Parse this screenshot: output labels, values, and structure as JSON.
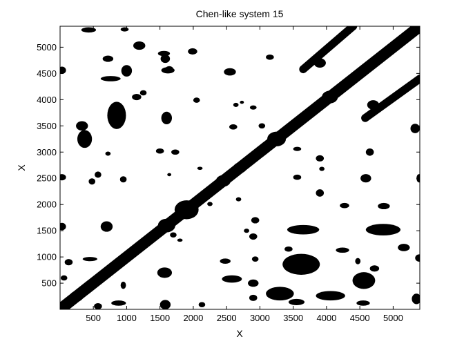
{
  "chart_data": {
    "type": "recurrence-plot",
    "title": "Chen-like system 15",
    "xlabel": "X",
    "ylabel": "X",
    "xlim": [
      1,
      5400
    ],
    "ylim": [
      1,
      5400
    ],
    "xticks": [
      500,
      1000,
      1500,
      2000,
      2500,
      3000,
      3500,
      4000,
      4500,
      5000
    ],
    "yticks": [
      500,
      1000,
      1500,
      2000,
      2500,
      3000,
      3500,
      4000,
      4500,
      5000
    ],
    "grid": false,
    "colors": {
      "recurrence": "#000000",
      "background": "#ffffff"
    },
    "diagonals": [
      {
        "name": "main",
        "from": [
          1,
          1
        ],
        "to": [
          5400,
          5400
        ],
        "width": 170
      },
      {
        "name": "upper",
        "from": [
          3650,
          4580
        ],
        "to": [
          4400,
          5400
        ],
        "width": 120
      },
      {
        "name": "lower",
        "from": [
          4580,
          3650
        ],
        "to": [
          5400,
          4400
        ],
        "width": 120
      }
    ],
    "nodes": [
      [
        250,
        250,
        100
      ],
      [
        700,
        700,
        80
      ],
      [
        1600,
        1600,
        130
      ],
      [
        1900,
        1900,
        180
      ],
      [
        2450,
        2450,
        110
      ],
      [
        2700,
        2700,
        100
      ],
      [
        3250,
        3250,
        140
      ],
      [
        4050,
        4050,
        120
      ],
      [
        4650,
        4650,
        90
      ],
      [
        3900,
        4700,
        90
      ],
      [
        4700,
        3900,
        90
      ]
    ],
    "blobs": [
      [
        430,
        5330,
        110,
        50
      ],
      [
        970,
        5340,
        60,
        40
      ],
      [
        30,
        4560,
        60,
        70
      ],
      [
        1190,
        5030,
        90,
        80
      ],
      [
        1560,
        4880,
        90,
        50
      ],
      [
        1990,
        4920,
        70,
        60
      ],
      [
        720,
        4780,
        80,
        60
      ],
      [
        760,
        4400,
        150,
        50
      ],
      [
        1000,
        4550,
        80,
        110
      ],
      [
        1580,
        4780,
        70,
        80
      ],
      [
        1620,
        4560,
        100,
        60
      ],
      [
        2550,
        4530,
        90,
        70
      ],
      [
        3150,
        4810,
        60,
        50
      ],
      [
        1150,
        4050,
        70,
        60
      ],
      [
        2050,
        3990,
        50,
        50
      ],
      [
        850,
        3700,
        140,
        260
      ],
      [
        1600,
        3650,
        80,
        120
      ],
      [
        330,
        3500,
        90,
        90
      ],
      [
        370,
        3250,
        110,
        170
      ],
      [
        2640,
        3900,
        40,
        40
      ],
      [
        2900,
        3850,
        50,
        40
      ],
      [
        2600,
        3480,
        60,
        50
      ],
      [
        3030,
        3500,
        50,
        50
      ],
      [
        1500,
        3020,
        60,
        50
      ],
      [
        1730,
        3000,
        60,
        50
      ],
      [
        720,
        2970,
        40,
        40
      ],
      [
        3560,
        3060,
        60,
        40
      ],
      [
        3900,
        2880,
        60,
        60
      ],
      [
        4650,
        3000,
        60,
        70
      ],
      [
        5330,
        3450,
        70,
        90
      ],
      [
        570,
        2570,
        50,
        60
      ],
      [
        480,
        2440,
        50,
        60
      ],
      [
        950,
        2480,
        50,
        60
      ],
      [
        2100,
        2690,
        40,
        30
      ],
      [
        1640,
        2570,
        30,
        30
      ],
      [
        3560,
        2520,
        60,
        50
      ],
      [
        3930,
        2680,
        40,
        40
      ],
      [
        4590,
        2500,
        80,
        80
      ],
      [
        5390,
        2500,
        40,
        80
      ],
      [
        30,
        2520,
        60,
        60
      ],
      [
        3900,
        2220,
        60,
        70
      ],
      [
        4270,
        1980,
        70,
        50
      ],
      [
        4860,
        1970,
        90,
        60
      ],
      [
        2680,
        2100,
        40,
        40
      ],
      [
        2930,
        1700,
        60,
        60
      ],
      [
        3650,
        1520,
        240,
        90
      ],
      [
        2800,
        1500,
        40,
        40
      ],
      [
        700,
        1580,
        90,
        100
      ],
      [
        1700,
        1420,
        50,
        50
      ],
      [
        4850,
        1520,
        260,
        110
      ],
      [
        5160,
        1180,
        90,
        70
      ],
      [
        2900,
        1390,
        60,
        60
      ],
      [
        30,
        1580,
        60,
        70
      ],
      [
        130,
        900,
        60,
        60
      ],
      [
        450,
        960,
        110,
        40
      ],
      [
        1570,
        700,
        110,
        100
      ],
      [
        2480,
        920,
        80,
        50
      ],
      [
        2930,
        960,
        50,
        50
      ],
      [
        3430,
        1150,
        60,
        50
      ],
      [
        3620,
        860,
        280,
        200
      ],
      [
        4240,
        1130,
        100,
        50
      ],
      [
        4470,
        920,
        40,
        60
      ],
      [
        4720,
        780,
        70,
        60
      ],
      [
        5390,
        980,
        60,
        70
      ],
      [
        4560,
        550,
        170,
        160
      ],
      [
        2580,
        580,
        150,
        70
      ],
      [
        2900,
        500,
        80,
        70
      ],
      [
        3300,
        300,
        210,
        130
      ],
      [
        3550,
        140,
        120,
        60
      ],
      [
        4550,
        120,
        100,
        50
      ],
      [
        5350,
        200,
        70,
        100
      ],
      [
        4060,
        260,
        220,
        90
      ],
      [
        60,
        600,
        50,
        50
      ],
      [
        950,
        460,
        40,
        70
      ],
      [
        880,
        120,
        110,
        50
      ],
      [
        570,
        60,
        60,
        60
      ],
      [
        1580,
        90,
        80,
        90
      ],
      [
        2130,
        90,
        50,
        50
      ],
      [
        2900,
        220,
        60,
        60
      ],
      [
        1800,
        1320,
        40,
        30
      ],
      [
        2250,
        2010,
        40,
        40
      ],
      [
        2730,
        3950,
        30,
        30
      ],
      [
        1250,
        4130,
        50,
        50
      ],
      [
        1640,
        4580,
        60,
        60
      ]
    ]
  }
}
